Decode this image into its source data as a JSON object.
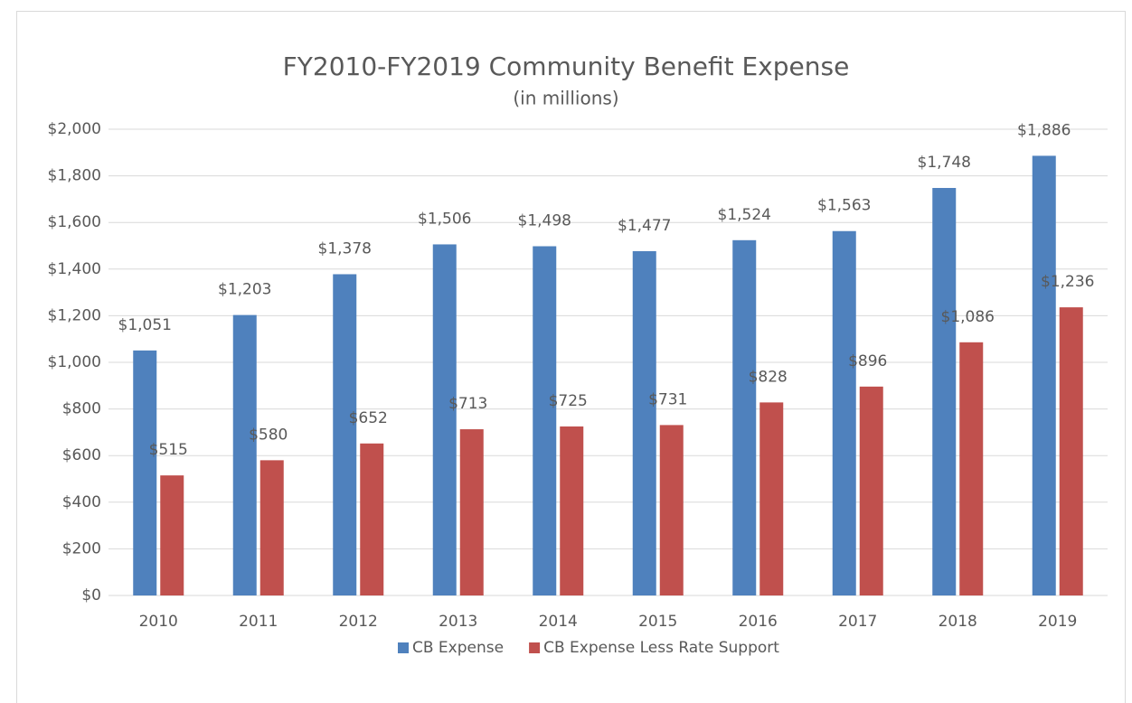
{
  "chart_data": {
    "type": "bar",
    "title": "FY2010-FY2019 Community Benefit Expense",
    "subtitle": "(in millions)",
    "categories": [
      "2010",
      "2011",
      "2012",
      "2013",
      "2014",
      "2015",
      "2016",
      "2017",
      "2018",
      "2019"
    ],
    "series": [
      {
        "name": "CB Expense",
        "color": "#4f81bd",
        "values": [
          1051,
          1203,
          1378,
          1506,
          1498,
          1477,
          1524,
          1563,
          1748,
          1886
        ],
        "value_labels": [
          "$1,051",
          "$1,203",
          "$1,378",
          "$1,506",
          "$1,498",
          "$1,477",
          "$1,524",
          "$1,563",
          "$1,748",
          "$1,886"
        ]
      },
      {
        "name": "CB Expense Less Rate Support",
        "color": "#c0504d",
        "values": [
          515,
          580,
          652,
          713,
          725,
          731,
          828,
          896,
          1086,
          1236
        ],
        "value_labels": [
          "$515",
          "$580",
          "$652",
          "$713",
          "$725",
          "$731",
          "$828",
          "$896",
          "$1,086",
          "$1,236"
        ]
      }
    ],
    "ylim": [
      0,
      2000
    ],
    "yticks": [
      {
        "value": 0,
        "label": "$0"
      },
      {
        "value": 200,
        "label": "$200"
      },
      {
        "value": 400,
        "label": "$400"
      },
      {
        "value": 600,
        "label": "$600"
      },
      {
        "value": 800,
        "label": "$800"
      },
      {
        "value": 1000,
        "label": "$1,000"
      },
      {
        "value": 1200,
        "label": "$1,200"
      },
      {
        "value": 1400,
        "label": "$1,400"
      },
      {
        "value": 1600,
        "label": "$1,600"
      },
      {
        "value": 1800,
        "label": "$1,800"
      },
      {
        "value": 2000,
        "label": "$2,000"
      }
    ],
    "grid": true,
    "legend": "bottom"
  }
}
